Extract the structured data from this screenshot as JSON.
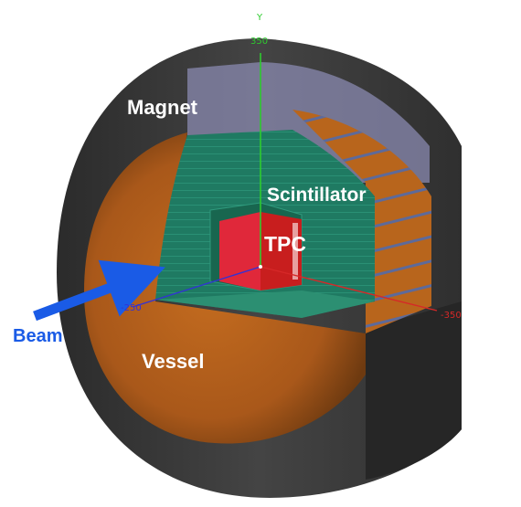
{
  "labels": {
    "magnet": "Magnet",
    "scintillator": "Scintillator",
    "tpc": "TPC",
    "vessel": "Vessel",
    "beam": "Beam"
  },
  "axes": {
    "y_name": "Y",
    "y_value": "350",
    "x_neg_value": "-250",
    "z_neg_value": "-350"
  },
  "colors": {
    "magnet": "#3b3b3b",
    "vessel": "#b5661e",
    "scintillator": "#1f7a62",
    "tpc": "#d91f2a",
    "beam_arrow": "#1a5be6",
    "y_axis": "#2ecc2e",
    "x_axis": "#3232d6",
    "z_axis": "#d62828"
  }
}
